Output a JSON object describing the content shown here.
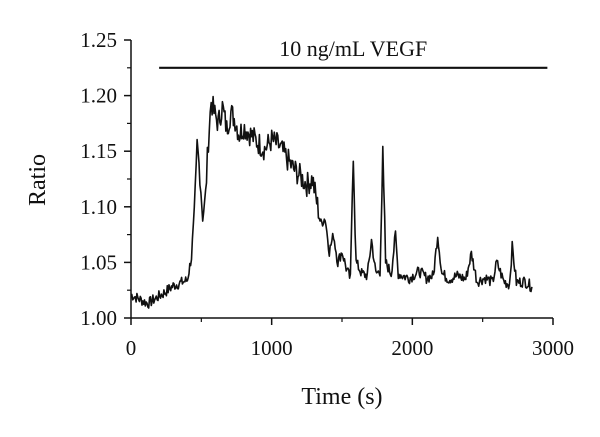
{
  "chart_data": {
    "type": "line",
    "xlabel": "Time (s)",
    "ylabel": "Ratio",
    "xlim": [
      0,
      3000
    ],
    "ylim": [
      1.0,
      1.25
    ],
    "x_ticks": [
      "0",
      "1000",
      "2000",
      "3000"
    ],
    "y_ticks": [
      "1.00",
      "1.05",
      "1.10",
      "1.15",
      "1.20",
      "1.25"
    ],
    "grid": false,
    "annotations": [
      {
        "text": "10 ng/mL VEGF",
        "x_start": 200,
        "x_end": 2960,
        "y": 1.225
      }
    ],
    "series": [
      {
        "x": [
          0,
          60,
          120,
          180,
          240,
          300,
          360,
          400,
          430,
          450,
          470,
          490,
          510,
          530,
          550,
          570,
          590,
          620,
          650,
          680,
          710,
          740,
          770,
          800,
          850,
          900,
          950,
          1000,
          1050,
          1100,
          1150,
          1200,
          1250,
          1290,
          1320,
          1350,
          1380,
          1410,
          1440,
          1470,
          1500,
          1530,
          1560,
          1580,
          1600,
          1640,
          1680,
          1710,
          1740,
          1770,
          1790,
          1810,
          1850,
          1880,
          1900,
          1930,
          1980,
          2050,
          2100,
          2150,
          2180,
          2210,
          2260,
          2320,
          2380,
          2420,
          2460,
          2520,
          2570,
          2600,
          2650,
          2690,
          2710,
          2740,
          2800,
          2850
        ],
        "y": [
          1.021,
          1.017,
          1.013,
          1.018,
          1.023,
          1.029,
          1.032,
          1.034,
          1.055,
          1.095,
          1.155,
          1.13,
          1.09,
          1.11,
          1.16,
          1.195,
          1.185,
          1.175,
          1.19,
          1.17,
          1.185,
          1.178,
          1.165,
          1.172,
          1.165,
          1.158,
          1.152,
          1.16,
          1.155,
          1.145,
          1.135,
          1.128,
          1.12,
          1.125,
          1.105,
          1.085,
          1.09,
          1.06,
          1.075,
          1.05,
          1.06,
          1.045,
          1.035,
          1.15,
          1.05,
          1.04,
          1.038,
          1.07,
          1.04,
          1.042,
          1.145,
          1.05,
          1.04,
          1.075,
          1.04,
          1.038,
          1.036,
          1.042,
          1.036,
          1.038,
          1.075,
          1.04,
          1.035,
          1.038,
          1.035,
          1.058,
          1.033,
          1.036,
          1.032,
          1.05,
          1.033,
          1.03,
          1.064,
          1.032,
          1.033,
          1.028
        ]
      }
    ]
  }
}
